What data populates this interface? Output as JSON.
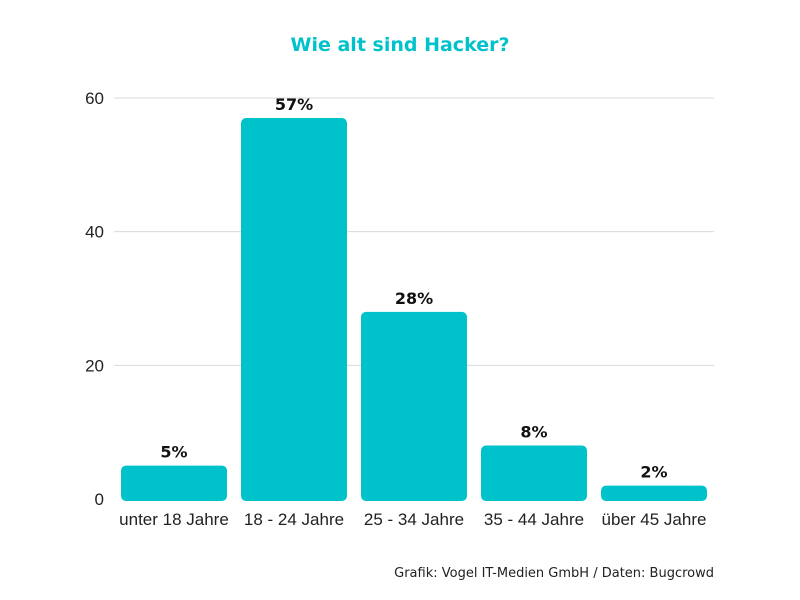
{
  "chart_data": {
    "type": "bar",
    "title": "Wie alt sind Hacker?",
    "categories": [
      "unter 18 Jahre",
      "18 - 24 Jahre",
      "25 - 34 Jahre",
      "35 - 44 Jahre",
      "über 45 Jahre"
    ],
    "values": [
      5,
      57,
      28,
      8,
      2
    ],
    "data_labels": [
      "5%",
      "57%",
      "28%",
      "8%",
      "2%"
    ],
    "xlabel": "",
    "ylabel": "",
    "ylim": [
      0,
      60
    ],
    "yticks": [
      0,
      20,
      40,
      60
    ],
    "grid": true,
    "colors": {
      "bar": "#00c2cb",
      "title": "#00c2cb",
      "grid": "#d9d9d9"
    }
  },
  "source_note": "Grafik: Vogel IT-Medien GmbH / Daten: Bugcrowd"
}
